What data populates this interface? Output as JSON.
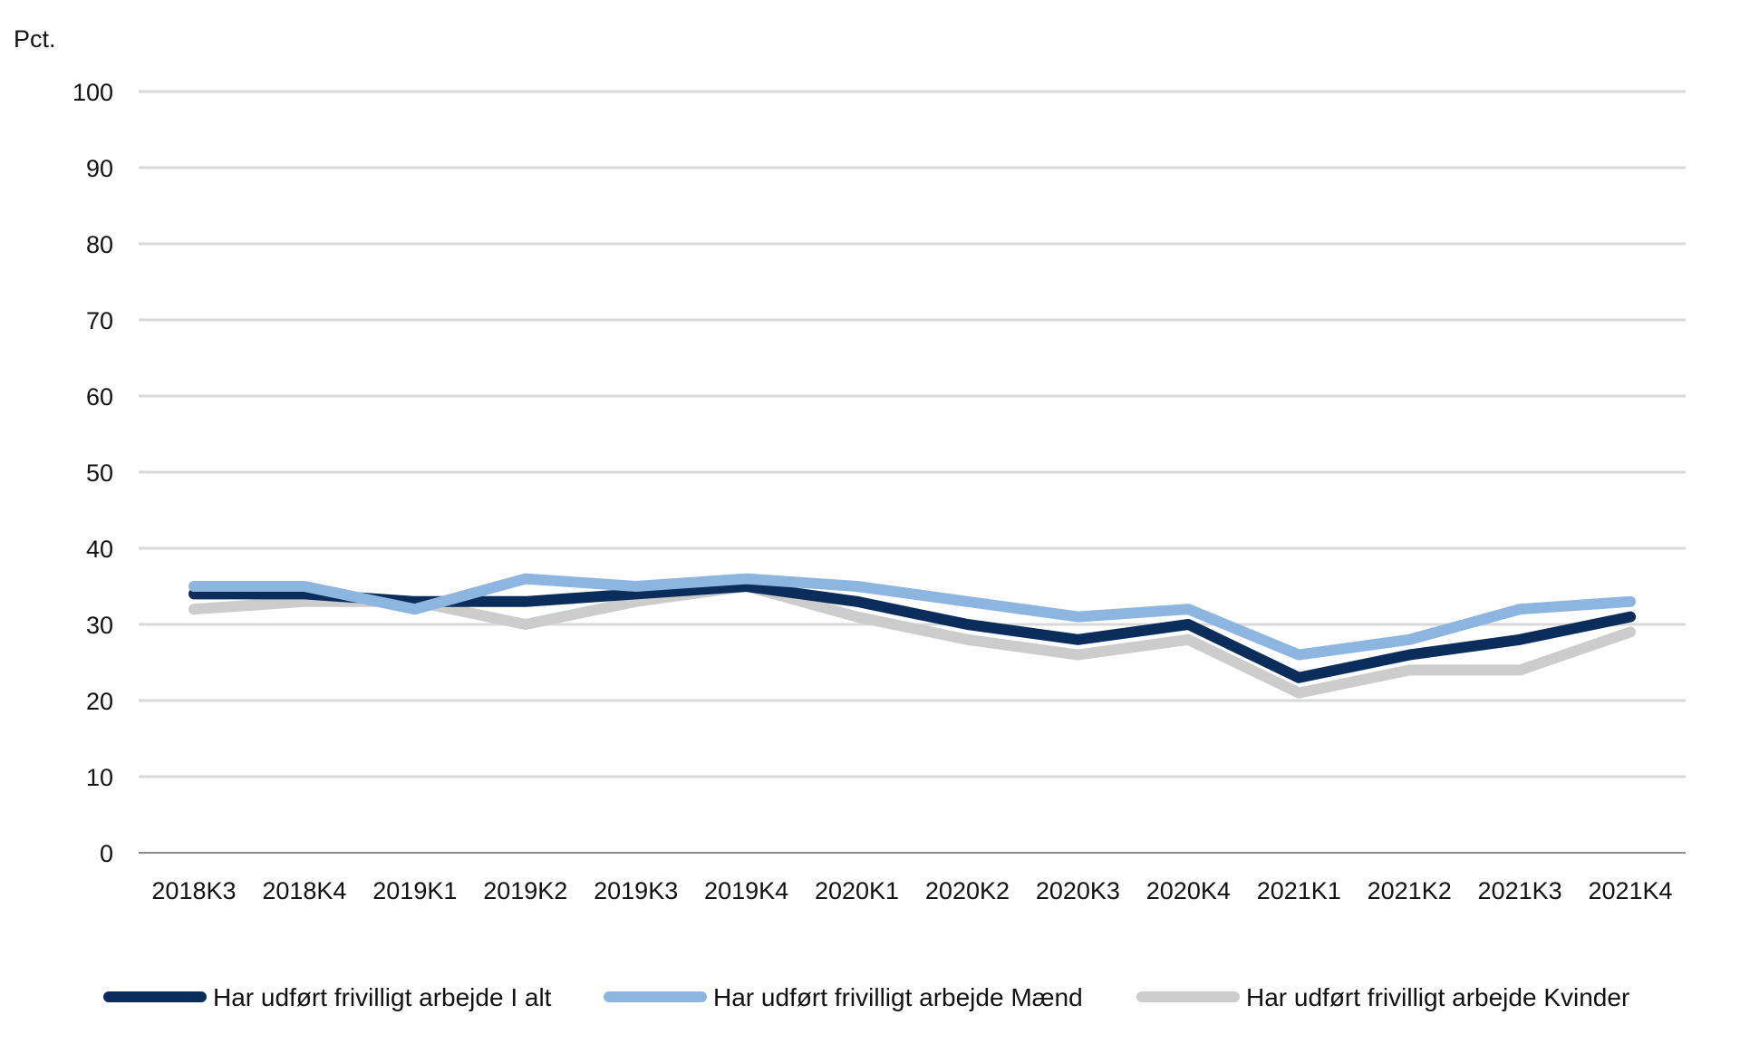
{
  "chart_data": {
    "type": "line",
    "title": "",
    "xlabel": "",
    "ylabel": "Pct.",
    "ylim": [
      0,
      100
    ],
    "yticks": [
      "0",
      "10",
      "20",
      "30",
      "40",
      "50",
      "60",
      "70",
      "80",
      "90",
      "100"
    ],
    "grid": true,
    "legend_position": "bottom",
    "categories": [
      "2018K3",
      "2018K4",
      "2019K1",
      "2019K2",
      "2019K3",
      "2019K4",
      "2020K1",
      "2020K2",
      "2020K3",
      "2020K4",
      "2021K1",
      "2021K2",
      "2021K3",
      "2021K4"
    ],
    "series": [
      {
        "name": "Har udført frivilligt arbejde I alt",
        "color": "#0b2d5c",
        "values": [
          34,
          34,
          33,
          33,
          34,
          35,
          33,
          30,
          28,
          30,
          23,
          26,
          28,
          31
        ]
      },
      {
        "name": "Har udført frivilligt arbejde Mænd",
        "color": "#8cb6e0",
        "values": [
          35,
          35,
          32,
          36,
          35,
          36,
          35,
          33,
          31,
          32,
          26,
          28,
          32,
          33
        ]
      },
      {
        "name": "Har udført frivilligt arbejde Kvinder",
        "color": "#cccccc",
        "values": [
          32,
          33,
          33,
          30,
          33,
          35,
          31,
          28,
          26,
          28,
          21,
          24,
          24,
          29
        ]
      }
    ]
  }
}
